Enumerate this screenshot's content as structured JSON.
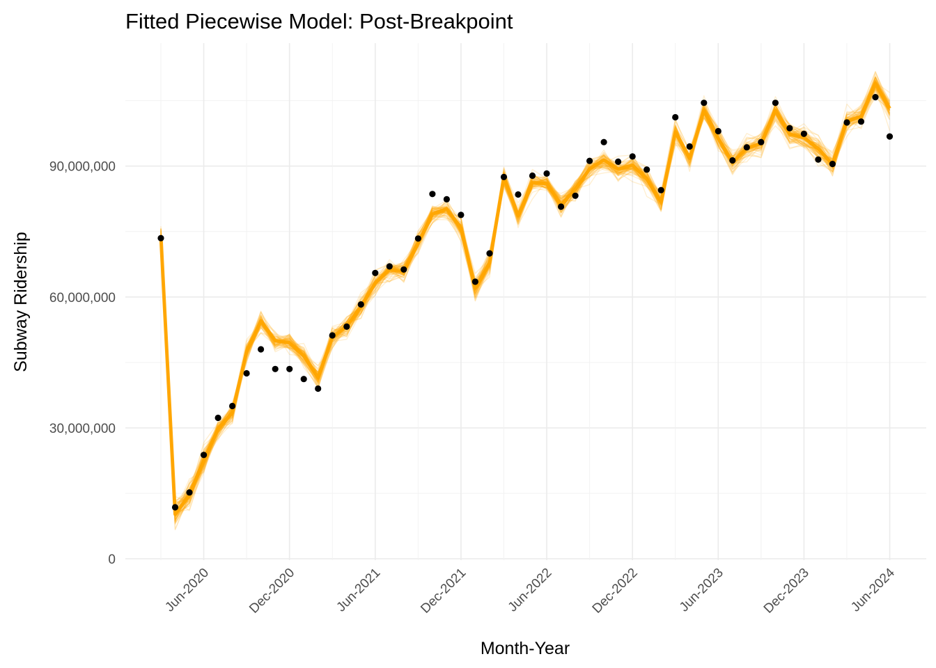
{
  "chart_data": {
    "type": "line",
    "title": "Fitted Piecewise Model: Post-Breakpoint",
    "xlabel": "Month-Year",
    "ylabel": "Subway Ridership",
    "x_tick_labels": [
      "Jun-2020",
      "Dec-2020",
      "Jun-2021",
      "Dec-2021",
      "Jun-2022",
      "Dec-2022",
      "Jun-2023",
      "Dec-2023",
      "Jun-2024"
    ],
    "y_tick_labels": [
      "0",
      "30,000,000",
      "60,000,000",
      "90,000,000"
    ],
    "y_ticks": [
      0,
      30000000,
      60000000,
      90000000
    ],
    "ylim": [
      -4000000,
      117000000
    ],
    "x": [
      "Mar-2020",
      "Apr-2020",
      "May-2020",
      "Jun-2020",
      "Jul-2020",
      "Aug-2020",
      "Sep-2020",
      "Oct-2020",
      "Nov-2020",
      "Dec-2020",
      "Jan-2021",
      "Feb-2021",
      "Mar-2021",
      "Apr-2021",
      "May-2021",
      "Jun-2021",
      "Jul-2021",
      "Aug-2021",
      "Sep-2021",
      "Oct-2021",
      "Nov-2021",
      "Dec-2021",
      "Jan-2022",
      "Feb-2022",
      "Mar-2022",
      "Apr-2022",
      "May-2022",
      "Jun-2022",
      "Jul-2022",
      "Aug-2022",
      "Sep-2022",
      "Oct-2022",
      "Nov-2022",
      "Dec-2022",
      "Jan-2023",
      "Feb-2023",
      "Mar-2023",
      "Apr-2023",
      "May-2023",
      "Jun-2023",
      "Jul-2023",
      "Aug-2023",
      "Sep-2023",
      "Oct-2023",
      "Nov-2023",
      "Dec-2023",
      "Jan-2024",
      "Feb-2024",
      "Mar-2024",
      "Apr-2024",
      "May-2024",
      "Jun-2024"
    ],
    "series": [
      {
        "kind": "observed",
        "color": "#000000",
        "values": [
          73500000,
          11800000,
          15200000,
          23800000,
          32300000,
          35000000,
          42500000,
          48000000,
          43500000,
          43500000,
          41200000,
          39000000,
          51200000,
          53200000,
          58300000,
          65500000,
          67000000,
          66300000,
          73400000,
          83600000,
          82400000,
          78800000,
          63500000,
          70000000,
          87500000,
          83500000,
          87800000,
          88300000,
          80700000,
          83200000,
          91200000,
          95500000,
          91000000,
          92200000,
          89200000,
          84500000,
          101200000,
          94500000,
          104500000,
          98000000,
          91300000,
          94300000,
          95500000,
          104500000,
          98700000,
          97400000,
          91500000,
          90500000,
          100000000,
          100200000,
          105800000,
          96800000
        ]
      },
      {
        "kind": "fitted",
        "color": "#ffa500",
        "values": [
          74000000,
          10200000,
          14500000,
          22500000,
          29800000,
          33500000,
          47500000,
          54500000,
          50000000,
          49500000,
          46500000,
          41500000,
          50800000,
          53200000,
          57800000,
          63200000,
          66300000,
          65800000,
          72300000,
          79000000,
          80200000,
          75800000,
          62000000,
          67800000,
          87400000,
          78600000,
          86200000,
          86000000,
          81100000,
          84700000,
          89400000,
          91400000,
          89300000,
          90200000,
          87100000,
          81800000,
          97800000,
          91800000,
          102800000,
          96300000,
          90800000,
          94100000,
          95200000,
          102800000,
          97300000,
          96500000,
          94000000,
          90400000,
          100300000,
          101400000,
          108900000,
          103200000
        ]
      }
    ]
  }
}
